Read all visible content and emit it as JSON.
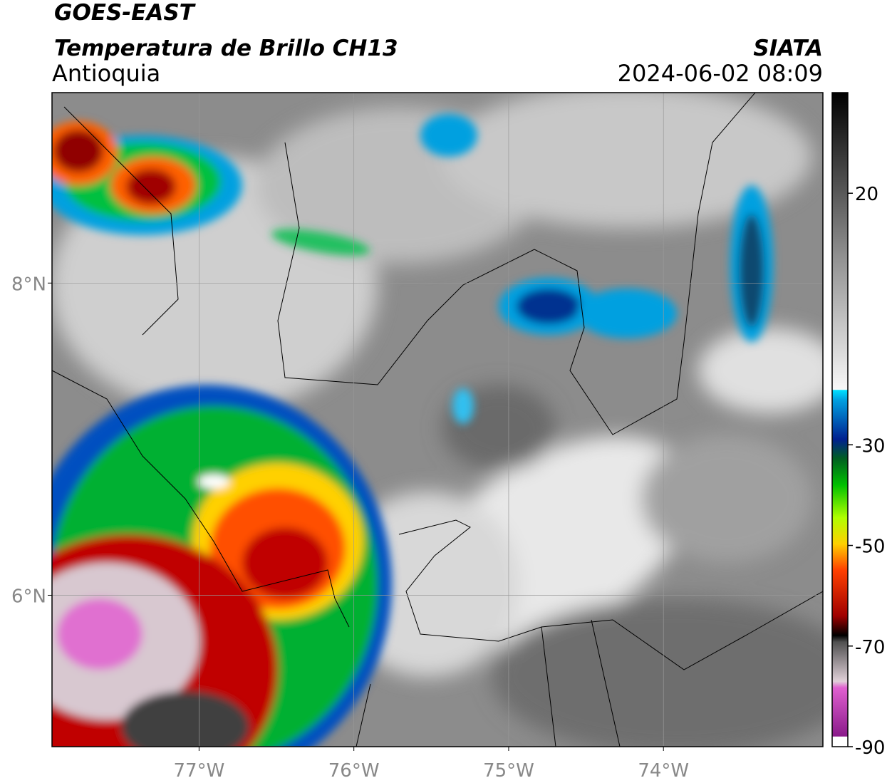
{
  "header": {
    "satellite": "GOES-EAST",
    "product": "Temperatura de Brillo CH13",
    "region": "Antioquia",
    "source": "SIATA",
    "datetime": "2024-06-02 08:09"
  },
  "chart_data": {
    "type": "map",
    "xlim": [
      -77.95,
      -72.97
    ],
    "ylim": [
      5.03,
      9.22
    ],
    "xticks": [
      {
        "value": -77,
        "label": "77°W"
      },
      {
        "value": -76,
        "label": "76°W"
      },
      {
        "value": -75,
        "label": "75°W"
      },
      {
        "value": -74,
        "label": "74°W"
      }
    ],
    "yticks": [
      {
        "value": 6,
        "label": "6°N"
      },
      {
        "value": 8,
        "label": "8°N"
      }
    ],
    "grid": true,
    "colorbar": {
      "lim": [
        -90,
        40
      ],
      "ticks": [
        -90,
        -70,
        -50,
        -30,
        20
      ]
    }
  }
}
